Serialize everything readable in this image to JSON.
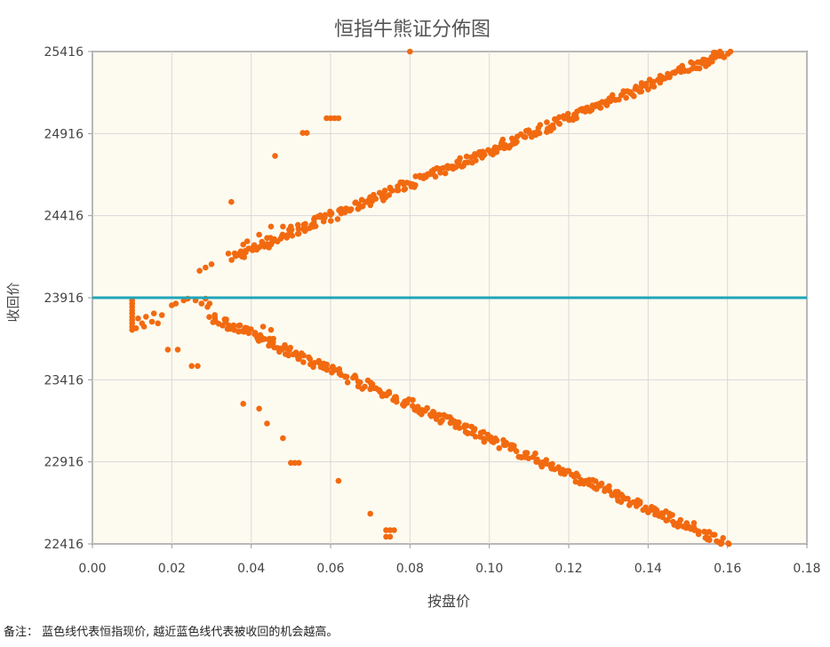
{
  "chart_data": {
    "type": "scatter",
    "title": "恒指牛熊证分佈图",
    "xlabel": "按盘价",
    "ylabel": "收回价",
    "xlim": [
      0,
      0.18
    ],
    "ylim": [
      22416,
      25416
    ],
    "x_ticks": [
      "0.00",
      "0.02",
      "0.04",
      "0.06",
      "0.08",
      "0.10",
      "0.12",
      "0.14",
      "0.16",
      "0.18"
    ],
    "y_ticks": [
      "22416",
      "22916",
      "23416",
      "23916",
      "24416",
      "24916",
      "25416"
    ],
    "grid": true,
    "reference_line": {
      "y": 23916,
      "color": "#1fa5b8"
    },
    "point_color": "#f26a10",
    "upper_trend": {
      "x_start": 0.035,
      "y_start": 24160,
      "x_end": 0.16,
      "y_end": 25416,
      "spread": 30
    },
    "lower_trend": {
      "x_start": 0.03,
      "y_start": 23800,
      "x_end": 0.16,
      "y_end": 22416,
      "spread": 30
    },
    "points": [
      [
        0.01,
        23900
      ],
      [
        0.01,
        23880
      ],
      [
        0.01,
        23860
      ],
      [
        0.01,
        23840
      ],
      [
        0.01,
        23820
      ],
      [
        0.01,
        23800
      ],
      [
        0.01,
        23780
      ],
      [
        0.01,
        23760
      ],
      [
        0.01,
        23740
      ],
      [
        0.01,
        23720
      ],
      [
        0.011,
        23730
      ],
      [
        0.0115,
        23790
      ],
      [
        0.0125,
        23760
      ],
      [
        0.013,
        23740
      ],
      [
        0.0135,
        23800
      ],
      [
        0.015,
        23770
      ],
      [
        0.0155,
        23820
      ],
      [
        0.0165,
        23760
      ],
      [
        0.0175,
        23810
      ],
      [
        0.019,
        23600
      ],
      [
        0.02,
        23870
      ],
      [
        0.021,
        23880
      ],
      [
        0.023,
        23900
      ],
      [
        0.0215,
        23600
      ],
      [
        0.024,
        23910
      ],
      [
        0.026,
        23900
      ],
      [
        0.0275,
        23880
      ],
      [
        0.0285,
        23910
      ],
      [
        0.0295,
        23880
      ],
      [
        0.029,
        23860
      ],
      [
        0.025,
        23500
      ],
      [
        0.0265,
        23500
      ],
      [
        0.027,
        24080
      ],
      [
        0.0285,
        24100
      ],
      [
        0.03,
        24120
      ],
      [
        0.035,
        24500
      ],
      [
        0.038,
        24240
      ],
      [
        0.039,
        24260
      ],
      [
        0.041,
        24220
      ],
      [
        0.042,
        24300
      ],
      [
        0.044,
        24280
      ],
      [
        0.045,
        24350
      ],
      [
        0.048,
        24350
      ],
      [
        0.05,
        24350
      ],
      [
        0.046,
        24780
      ],
      [
        0.053,
        24920
      ],
      [
        0.054,
        24920
      ],
      [
        0.059,
        25010
      ],
      [
        0.06,
        25010
      ],
      [
        0.061,
        25010
      ],
      [
        0.062,
        25010
      ],
      [
        0.08,
        25416
      ],
      [
        0.038,
        23270
      ],
      [
        0.042,
        23240
      ],
      [
        0.044,
        23150
      ],
      [
        0.048,
        23060
      ],
      [
        0.05,
        22910
      ],
      [
        0.051,
        22910
      ],
      [
        0.052,
        22910
      ],
      [
        0.062,
        22800
      ],
      [
        0.07,
        22600
      ],
      [
        0.074,
        22500
      ],
      [
        0.075,
        22500
      ],
      [
        0.076,
        22500
      ],
      [
        0.074,
        22460
      ],
      [
        0.075,
        22460
      ],
      [
        0.043,
        23740
      ],
      [
        0.045,
        23720
      ]
    ]
  },
  "note": "备注： 蓝色线代表恒指现价, 越近蓝色线代表被收回的机会越高。"
}
